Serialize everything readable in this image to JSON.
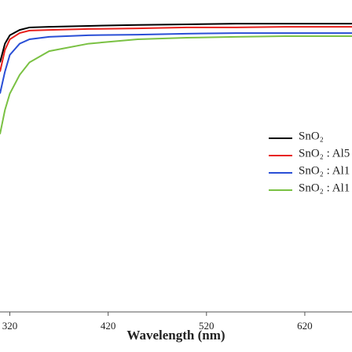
{
  "chart_data": {
    "type": "line",
    "x_label": "Wavelength (nm)",
    "x": [
      310,
      315,
      320,
      330,
      340,
      360,
      400,
      450,
      500,
      550,
      600,
      650,
      668
    ],
    "xlim": [
      310,
      668
    ],
    "xticks": [
      320,
      420,
      520,
      620
    ],
    "ylim": [
      0,
      100
    ],
    "series": [
      {
        "name": "SnO₂",
        "color": "#000000",
        "values": [
          80,
          86,
          88.7,
          90.4,
          91.2,
          91.4,
          91.7,
          92,
          92.2,
          92.4,
          92.4,
          92.4,
          92.4
        ]
      },
      {
        "name": "SnO₂ : Al5",
        "color": "#e8201c",
        "values": [
          77,
          84,
          87.4,
          89.4,
          90.2,
          90.4,
          90.7,
          90.9,
          91.2,
          91.2,
          91.4,
          91.4,
          91.4
        ]
      },
      {
        "name": "SnO₂ : Al1",
        "color": "#2a4fd6",
        "values": [
          70,
          77,
          82.4,
          86,
          87.4,
          88.2,
          88.7,
          88.9,
          89.2,
          89.4,
          89.4,
          89.4,
          89.4
        ]
      },
      {
        "name": "SnO₂ : Al1",
        "color": "#7ac143",
        "values": [
          57,
          64.7,
          70,
          76,
          80,
          83.6,
          86,
          87.4,
          87.9,
          88.2,
          88.4,
          88.4,
          88.4
        ]
      }
    ]
  }
}
